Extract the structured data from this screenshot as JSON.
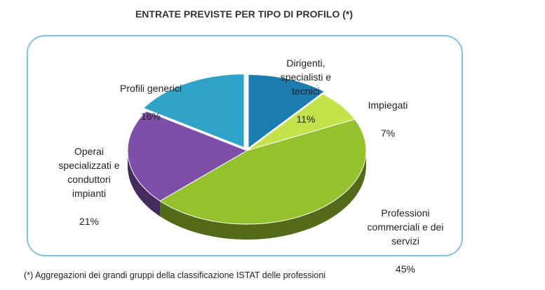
{
  "title": "ENTRATE PREVISTE PER TIPO DI PROFILO (*)",
  "footnote": "(*) Aggregazioni dei grandi gruppi della classificazione ISTAT delle professioni",
  "chart_data": {
    "type": "pie",
    "title": "ENTRATE PREVISTE PER TIPO DI PROFILO (*)",
    "legend": "none",
    "slices": [
      {
        "label": "Dirigenti,\nspecialisti e\ntecnici",
        "value": 11,
        "display": "11%",
        "color": "#1b7cb0"
      },
      {
        "label": "Impiegati",
        "value": 7,
        "display": "7%",
        "color": "#c6e24a"
      },
      {
        "label": "Professioni\ncommerciali e dei\nservizi",
        "value": 45,
        "display": "45%",
        "color": "#93c22c"
      },
      {
        "label": "Operai\nspecializzati e\nconduttori\nimpianti",
        "value": 21,
        "display": "21%",
        "color": "#7d4fa8"
      },
      {
        "label": "Profili generici",
        "value": 16,
        "display": "16%",
        "color": "#2fa3c7"
      }
    ]
  }
}
